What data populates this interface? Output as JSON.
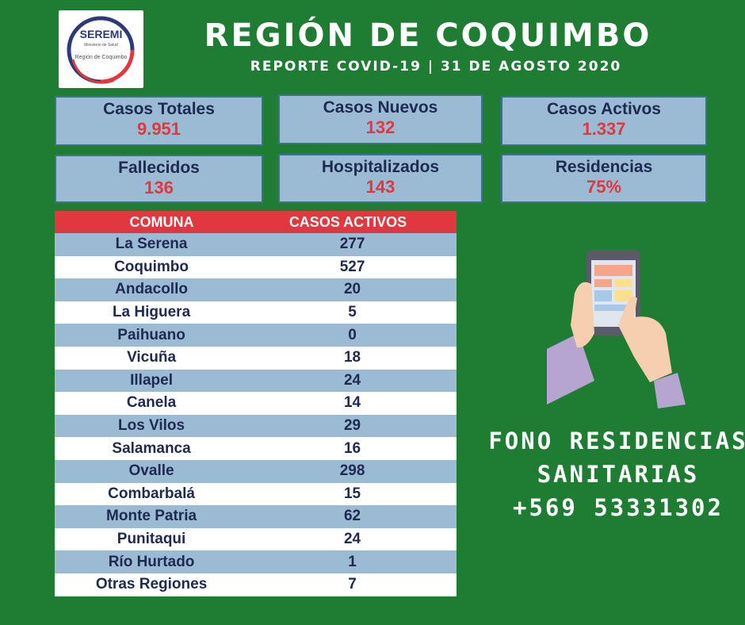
{
  "logo": {
    "name": "SEREMI",
    "ministry": "Ministerio de Salud",
    "region": "Región de Coquimbo"
  },
  "header": {
    "title": "REGIÓN DE COQUIMBO",
    "subtitle": "REPORTE COVID-19 | 31 DE AGOSTO 2020"
  },
  "stats": [
    {
      "label": "Casos Totales",
      "value": "9.951"
    },
    {
      "label": "Casos Nuevos",
      "value": "132"
    },
    {
      "label": "Casos Activos",
      "value": "1.337"
    },
    {
      "label": "Fallecidos",
      "value": "136"
    },
    {
      "label": "Hospitalizados",
      "value": "143"
    },
    {
      "label": "Residencias",
      "value": "75%"
    }
  ],
  "table": {
    "headers": [
      "COMUNA",
      "CASOS ACTIVOS"
    ],
    "rows": [
      {
        "comuna": "La Serena",
        "casos": "277"
      },
      {
        "comuna": "Coquimbo",
        "casos": "527"
      },
      {
        "comuna": "Andacollo",
        "casos": "20"
      },
      {
        "comuna": "La Higuera",
        "casos": "5"
      },
      {
        "comuna": "Paihuano",
        "casos": "0"
      },
      {
        "comuna": "Vicuña",
        "casos": "18"
      },
      {
        "comuna": "Illapel",
        "casos": "24"
      },
      {
        "comuna": "Canela",
        "casos": "14"
      },
      {
        "comuna": "Los Vilos",
        "casos": "29"
      },
      {
        "comuna": "Salamanca",
        "casos": "16"
      },
      {
        "comuna": "Ovalle",
        "casos": "298"
      },
      {
        "comuna": "Combarbalá",
        "casos": "15"
      },
      {
        "comuna": "Monte Patria",
        "casos": "62"
      },
      {
        "comuna": "Punitaqui",
        "casos": "24"
      },
      {
        "comuna": "Río Hurtado",
        "casos": "1"
      },
      {
        "comuna": "Otras Regiones",
        "casos": "7"
      }
    ]
  },
  "fono": {
    "line1": "FONO RESIDENCIAS",
    "line2": "SANITARIAS",
    "line3": "+569 53331302"
  },
  "illustration": "hand-holding-smartphone-icon",
  "colors": {
    "background": "#1e7d32",
    "card": "#9bbad3",
    "accent_red": "#e0383e",
    "navy": "#1f2a52"
  }
}
